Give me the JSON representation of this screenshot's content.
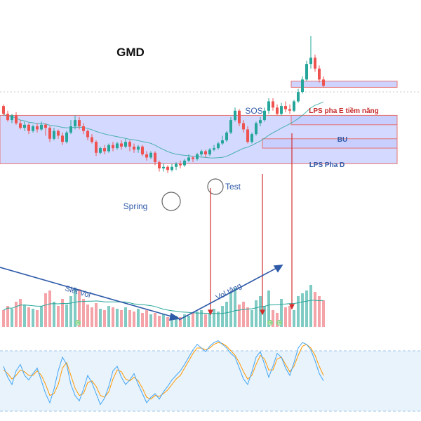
{
  "chart_data": {
    "type": "candlestick",
    "title": "GMD",
    "colors": {
      "up": "#26a69a",
      "down": "#ef5350",
      "zone_fill": "#c6ccff",
      "zone_border": "#e57373",
      "annotation": "#2f5aa8",
      "ma_line": "#26a69a",
      "volume_up": "#80cbc4",
      "volume_down": "#f4a3a8",
      "stoch_k": "#42a5f5",
      "stoch_d": "#ff9800",
      "stoch_band": "#e8f3fc"
    },
    "price": {
      "ohlc": [
        [
          235,
          230,
          236,
          229
        ],
        [
          230,
          226,
          232,
          225
        ],
        [
          226,
          229,
          230,
          224
        ],
        [
          229,
          224,
          231,
          223
        ],
        [
          224,
          221,
          226,
          220
        ],
        [
          221,
          223,
          225,
          219
        ],
        [
          223,
          219,
          224,
          217
        ],
        [
          219,
          222,
          223,
          218
        ],
        [
          222,
          220,
          224,
          218
        ],
        [
          220,
          223,
          225,
          219
        ],
        [
          223,
          221,
          224,
          216
        ],
        [
          221,
          214,
          222,
          212
        ],
        [
          214,
          219,
          221,
          213
        ],
        [
          219,
          216,
          220,
          214
        ],
        [
          216,
          212,
          218,
          210
        ],
        [
          212,
          218,
          219,
          211
        ],
        [
          218,
          222,
          226,
          217
        ],
        [
          222,
          226,
          229,
          220
        ],
        [
          226,
          222,
          228,
          220
        ],
        [
          222,
          219,
          224,
          217
        ],
        [
          219,
          215,
          220,
          213
        ],
        [
          215,
          212,
          217,
          211
        ],
        [
          212,
          205,
          213,
          203
        ],
        [
          205,
          208,
          209,
          204
        ],
        [
          208,
          206,
          210,
          204
        ],
        [
          206,
          210,
          211,
          205
        ],
        [
          210,
          208,
          212,
          206
        ],
        [
          208,
          211,
          212,
          207
        ],
        [
          211,
          209,
          213,
          207
        ],
        [
          209,
          212,
          214,
          208
        ],
        [
          212,
          209,
          213,
          206
        ],
        [
          209,
          207,
          211,
          205
        ],
        [
          207,
          209,
          210,
          205
        ],
        [
          209,
          204,
          210,
          203
        ],
        [
          204,
          202,
          206,
          200
        ],
        [
          202,
          205,
          206,
          201
        ],
        [
          205,
          199,
          206,
          197
        ],
        [
          199,
          195,
          200,
          193
        ],
        [
          195,
          196,
          198,
          193
        ],
        [
          196,
          194,
          197,
          192
        ],
        [
          194,
          196,
          198,
          193
        ],
        [
          196,
          198,
          199,
          194
        ],
        [
          198,
          197,
          200,
          195
        ],
        [
          197,
          200,
          201,
          196
        ],
        [
          200,
          202,
          204,
          199
        ],
        [
          202,
          201,
          203,
          199
        ],
        [
          201,
          204,
          205,
          200
        ],
        [
          204,
          206,
          207,
          203
        ],
        [
          206,
          204,
          207,
          202
        ],
        [
          204,
          207,
          208,
          203
        ],
        [
          207,
          208,
          210,
          206
        ],
        [
          208,
          211,
          212,
          207
        ],
        [
          211,
          213,
          216,
          210
        ],
        [
          213,
          218,
          219,
          212
        ],
        [
          218,
          226,
          228,
          217
        ],
        [
          226,
          232,
          234,
          225
        ],
        [
          232,
          224,
          233,
          222
        ],
        [
          224,
          220,
          226,
          218
        ],
        [
          220,
          212,
          222,
          211
        ],
        [
          212,
          217,
          218,
          211
        ],
        [
          217,
          224,
          225,
          216
        ],
        [
          224,
          226,
          228,
          222
        ],
        [
          226,
          232,
          234,
          225
        ],
        [
          232,
          238,
          240,
          230
        ],
        [
          238,
          234,
          240,
          232
        ],
        [
          234,
          230,
          236,
          229
        ],
        [
          230,
          235,
          237,
          229
        ],
        [
          235,
          233,
          238,
          231
        ],
        [
          233,
          232,
          236,
          230
        ],
        [
          232,
          238,
          239,
          231
        ],
        [
          238,
          244,
          246,
          237
        ],
        [
          244,
          252,
          254,
          243
        ],
        [
          252,
          262,
          264,
          251
        ],
        [
          262,
          266,
          280,
          259
        ],
        [
          266,
          259,
          268,
          257
        ],
        [
          259,
          252,
          261,
          250
        ],
        [
          252,
          248,
          254,
          247
        ]
      ],
      "ylim": [
        150,
        285
      ]
    },
    "volume": {
      "values": [
        1.2,
        1.5,
        1.3,
        1.8,
        2.0,
        1.6,
        1.4,
        1.3,
        1.2,
        1.5,
        2.4,
        2.6,
        1.8,
        1.5,
        2.0,
        1.6,
        2.2,
        2.8,
        2.7,
        2.0,
        1.6,
        1.4,
        1.7,
        1.3,
        1.2,
        1.5,
        1.4,
        1.3,
        1.2,
        1.4,
        1.2,
        1.1,
        1.3,
        1.0,
        1.2,
        0.9,
        1.0,
        0.8,
        0.9,
        0.7,
        0.6,
        0.8,
        0.7,
        0.9,
        0.8,
        1.0,
        1.1,
        1.2,
        0.9,
        1.0,
        1.3,
        1.1,
        1.5,
        1.8,
        2.5,
        2.8,
        1.6,
        1.8,
        1.4,
        1.2,
        1.9,
        2.2,
        1.5,
        2.6,
        1.2,
        1.0,
        2.0,
        1.4,
        1.5,
        1.2,
        2.2,
        2.4,
        2.6,
        3.0,
        2.5,
        2.2,
        1.9
      ],
      "ylim": [
        0,
        3.5
      ],
      "ma_length": 20
    },
    "stochastic": {
      "k": [
        60,
        48,
        40,
        55,
        62,
        50,
        45,
        52,
        58,
        44,
        30,
        20,
        35,
        55,
        70,
        62,
        40,
        28,
        22,
        35,
        50,
        42,
        30,
        18,
        25,
        38,
        55,
        60,
        48,
        40,
        45,
        52,
        40,
        30,
        20,
        26,
        30,
        24,
        32,
        38,
        45,
        50,
        55,
        62,
        70,
        78,
        84,
        80,
        76,
        82,
        86,
        88,
        84,
        80,
        74,
        70,
        58,
        46,
        40,
        54,
        70,
        76,
        62,
        48,
        60,
        74,
        70,
        58,
        50,
        64,
        80,
        86,
        84,
        78,
        66,
        52,
        44
      ],
      "d": [
        56,
        52,
        46,
        50,
        56,
        54,
        50,
        50,
        55,
        50,
        40,
        28,
        30,
        40,
        58,
        64,
        50,
        36,
        28,
        30,
        42,
        44,
        38,
        28,
        26,
        32,
        46,
        56,
        54,
        46,
        44,
        48,
        44,
        36,
        26,
        24,
        28,
        27,
        30,
        34,
        40,
        46,
        50,
        58,
        66,
        74,
        80,
        80,
        78,
        80,
        84,
        86,
        85,
        82,
        77,
        72,
        64,
        54,
        46,
        50,
        62,
        72,
        68,
        56,
        56,
        68,
        70,
        62,
        54,
        60,
        72,
        82,
        84,
        80,
        72,
        60,
        50
      ],
      "ylim": [
        0,
        100
      ]
    },
    "zones": [
      {
        "label": "",
        "y_top": 229,
        "y_bottom": 198
      },
      {
        "label": "LPS pha E tiềm năng",
        "y_top": 251,
        "y_bottom": 247
      },
      {
        "label": "BU",
        "y_top": 229,
        "y_bottom": 223
      },
      {
        "label": "LPS Pha D",
        "y_top": 214,
        "y_bottom": 208
      }
    ],
    "annotations": {
      "spring": "Spring",
      "test": "Test",
      "sos": "SOS",
      "volume_decreasing": "Siết Vol",
      "volume_increasing": "Vol tăng",
      "badge": "E"
    }
  }
}
